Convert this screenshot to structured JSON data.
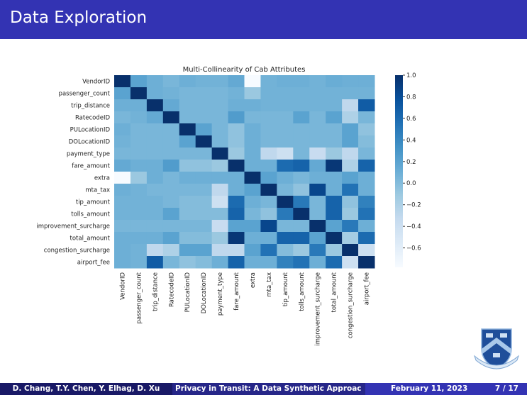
{
  "slide": {
    "title": "Data Exploration"
  },
  "footer": {
    "authors": "D. Chang, T.Y. Chen, Y. Elhag, D. Xu",
    "talk_title": "Privacy in Transit: A Data Synthetic Approac",
    "date": "February 11, 2023",
    "page": "7 / 17"
  },
  "logo": {
    "icon": "columbia-crown-shield-logo"
  },
  "chart_data": {
    "type": "heatmap",
    "title": "Multi-Collinearity of Cab Attributes",
    "colormap": "Blues",
    "colorbar": {
      "range": [
        -0.78,
        1.0
      ],
      "ticks": [
        "1.0",
        "0.8",
        "0.6",
        "0.4",
        "0.2",
        "0.0",
        "−0.2",
        "−0.4",
        "−0.6"
      ],
      "tick_values": [
        1.0,
        0.8,
        0.6,
        0.4,
        0.2,
        0.0,
        -0.2,
        -0.4,
        -0.6
      ]
    },
    "labels": [
      "VendorID",
      "passenger_count",
      "trip_distance",
      "RatecodeID",
      "PULocationID",
      "DOLocationID",
      "payment_type",
      "fare_amount",
      "extra",
      "mta_tax",
      "tip_amount",
      "tolls_amount",
      "improvement_surcharge",
      "total_amount",
      "congestion_surcharge",
      "airport_fee"
    ],
    "values": [
      [
        1,
        0.2,
        0.1,
        0.05,
        0.1,
        0.08,
        0.08,
        0.15,
        -0.78,
        0.08,
        0.1,
        0.1,
        0.08,
        0.12,
        0.1,
        0.1
      ],
      [
        0.2,
        1,
        0.1,
        0.08,
        0.05,
        0.05,
        0.05,
        0.08,
        -0.1,
        0.08,
        0.08,
        0.08,
        0.08,
        0.08,
        0.08,
        0.08
      ],
      [
        0.1,
        0.1,
        1,
        0.15,
        0.05,
        0.05,
        0.05,
        0.1,
        0.1,
        0.08,
        0.08,
        0.08,
        0.08,
        0.08,
        -0.3,
        0.7
      ],
      [
        0.05,
        0.08,
        0.15,
        1,
        0.05,
        0.05,
        0.05,
        0.25,
        0.05,
        0.05,
        0.05,
        0.2,
        0.05,
        0.2,
        -0.2,
        0.05
      ],
      [
        0.1,
        0.05,
        0.05,
        0.05,
        1,
        0.2,
        0.05,
        -0.05,
        0.1,
        0.05,
        0.05,
        0.05,
        0.05,
        0.05,
        0.2,
        -0.05
      ],
      [
        0.08,
        0.05,
        0.05,
        0.05,
        0.2,
        1,
        0.05,
        -0.05,
        0.1,
        0.05,
        0.05,
        0.05,
        0.05,
        0.05,
        0.2,
        0.0
      ],
      [
        0.05,
        0.05,
        0.05,
        0.05,
        0.05,
        0.05,
        1,
        -0.1,
        0.1,
        -0.3,
        -0.4,
        0.05,
        -0.35,
        -0.1,
        -0.3,
        0.05
      ],
      [
        0.15,
        0.1,
        0.1,
        0.25,
        -0.05,
        -0.05,
        -0.1,
        1,
        0.1,
        0.1,
        0.6,
        0.65,
        0.15,
        0.95,
        -0.2,
        0.65
      ],
      [
        -0.78,
        -0.1,
        0.1,
        0.05,
        0.1,
        0.1,
        0.1,
        0.1,
        1,
        0.2,
        0.1,
        0.05,
        0.1,
        0.1,
        0.2,
        0.1
      ],
      [
        0.1,
        0.08,
        0.05,
        0.05,
        0.05,
        0.05,
        -0.3,
        0.1,
        0.2,
        1,
        0.05,
        -0.05,
        0.85,
        0.1,
        0.55,
        0.1
      ],
      [
        0.08,
        0.08,
        0.08,
        0.05,
        0.0,
        0.0,
        -0.4,
        0.6,
        0.1,
        0.05,
        1,
        0.5,
        0.05,
        0.65,
        -0.05,
        0.45
      ],
      [
        0.08,
        0.08,
        0.08,
        0.2,
        0.0,
        0.0,
        0.0,
        0.65,
        0.05,
        -0.05,
        0.5,
        1,
        0.05,
        0.65,
        -0.1,
        0.55
      ],
      [
        0.05,
        0.05,
        0.05,
        0.05,
        0.05,
        0.05,
        -0.35,
        0.2,
        0.2,
        0.85,
        0.05,
        0.05,
        1,
        0.2,
        0.5,
        0.1
      ],
      [
        0.1,
        0.1,
        0.1,
        0.2,
        0.0,
        0.0,
        -0.1,
        0.95,
        0.1,
        0.1,
        0.65,
        0.65,
        0.2,
        1,
        -0.15,
        0.6
      ],
      [
        0.1,
        0.08,
        -0.3,
        -0.2,
        0.2,
        0.2,
        -0.3,
        -0.3,
        0.2,
        0.55,
        0.0,
        -0.1,
        0.5,
        -0.1,
        1,
        -0.4
      ],
      [
        0.1,
        0.08,
        0.7,
        0.05,
        -0.05,
        0.0,
        0.1,
        0.65,
        0.1,
        0.1,
        0.45,
        0.55,
        0.1,
        0.6,
        -0.4,
        1
      ]
    ]
  }
}
